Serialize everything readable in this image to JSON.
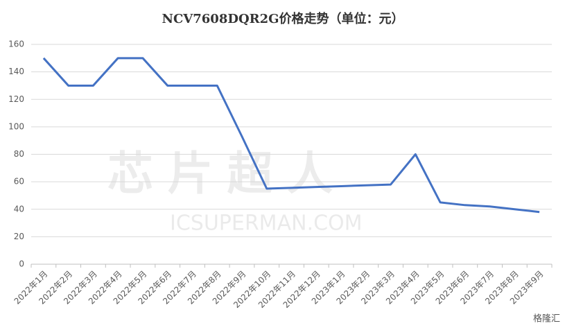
{
  "chart_data": {
    "type": "line",
    "title": "NCV7608DQR2G价格走势（单位：元）",
    "categories": [
      "2022年1月",
      "2022年2月",
      "2022年3月",
      "2022年4月",
      "2022年5月",
      "2022年6月",
      "2022年7月",
      "2022年8月",
      "2022年9月",
      "2022年10月",
      "2022年11月",
      "2022年12月",
      "2023年1月",
      "2023年2月",
      "2023年3月",
      "2023年4月",
      "2023年5月",
      "2023年6月",
      "2023年7月",
      "2023年8月",
      "2023年9月"
    ],
    "series": [
      {
        "name": "价格",
        "color": "#4472c4",
        "values": [
          150,
          130,
          130,
          150,
          150,
          130,
          130,
          130,
          93,
          55,
          55.6,
          56.2,
          56.8,
          57.4,
          58,
          80,
          45,
          43,
          42,
          40,
          38
        ]
      }
    ],
    "ylim": [
      0,
      160
    ],
    "yticks": [
      0,
      20,
      40,
      60,
      80,
      100,
      120,
      140,
      160
    ],
    "grid": true,
    "watermark": [
      "芯片超人",
      "ICSUPERMAN.COM"
    ],
    "source": "格隆汇"
  }
}
